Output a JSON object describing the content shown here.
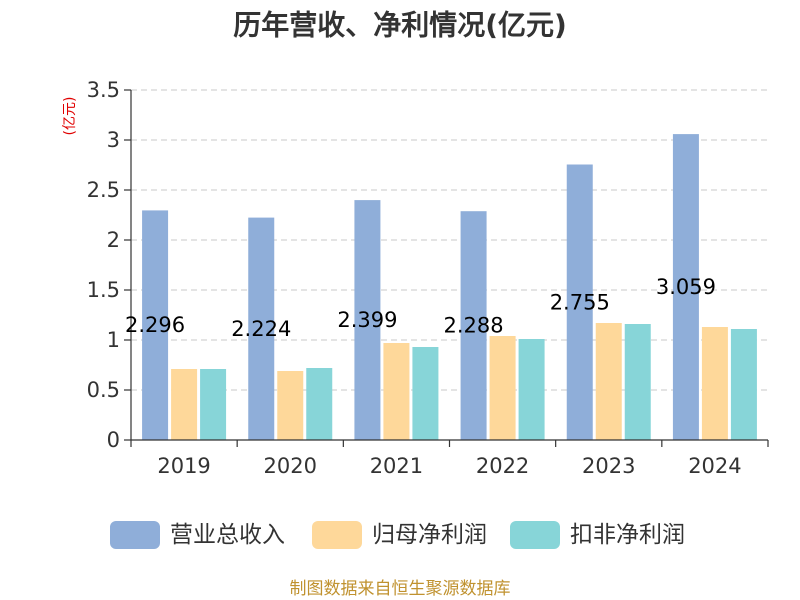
{
  "footer": "制图数据来自恒生聚源数据库",
  "colors": {
    "title": "#333333",
    "ylabel": "#e00000",
    "footer": "#c0922f",
    "axis": "#333333",
    "grid": "#c9c9c9"
  },
  "chart_data": {
    "type": "bar",
    "title": "历年营收、净利情况(亿元)",
    "ylabel": "(亿元)",
    "categories": [
      "2019",
      "2020",
      "2021",
      "2022",
      "2023",
      "2024"
    ],
    "series": [
      {
        "name": "营业总收入",
        "color": "#8faed9",
        "show_labels": true,
        "values": [
          2.296,
          2.224,
          2.399,
          2.288,
          2.755,
          3.059
        ]
      },
      {
        "name": "归母净利润",
        "color": "#fed89a",
        "show_labels": false,
        "values": [
          0.71,
          0.69,
          0.97,
          1.04,
          1.17,
          1.13
        ]
      },
      {
        "name": "扣非净利润",
        "color": "#87d5d8",
        "show_labels": false,
        "values": [
          0.71,
          0.72,
          0.93,
          1.01,
          1.16,
          1.11
        ]
      }
    ],
    "ylim": [
      0,
      3.5
    ],
    "yticks": [
      0,
      0.5,
      1,
      1.5,
      2,
      2.5,
      3,
      3.5
    ],
    "grid": true,
    "legend": "bottom"
  }
}
